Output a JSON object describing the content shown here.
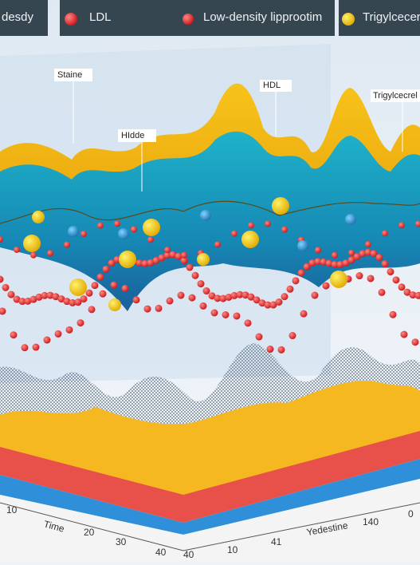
{
  "legend": {
    "items": [
      {
        "label": "desdy"
      },
      {
        "label": "LDL"
      },
      {
        "label": "Low-density lipprootim"
      },
      {
        "label": "Trigylcecer"
      }
    ]
  },
  "callouts": [
    "Staine",
    "HIdde",
    "HDL",
    "Trigylcecrel"
  ],
  "axes": {
    "time_label": "Time",
    "time_ticks": [
      10,
      20,
      30,
      40
    ],
    "depth_label": "Yedestine",
    "depth_ticks": [
      40,
      10,
      41,
      140,
      0
    ]
  }
}
